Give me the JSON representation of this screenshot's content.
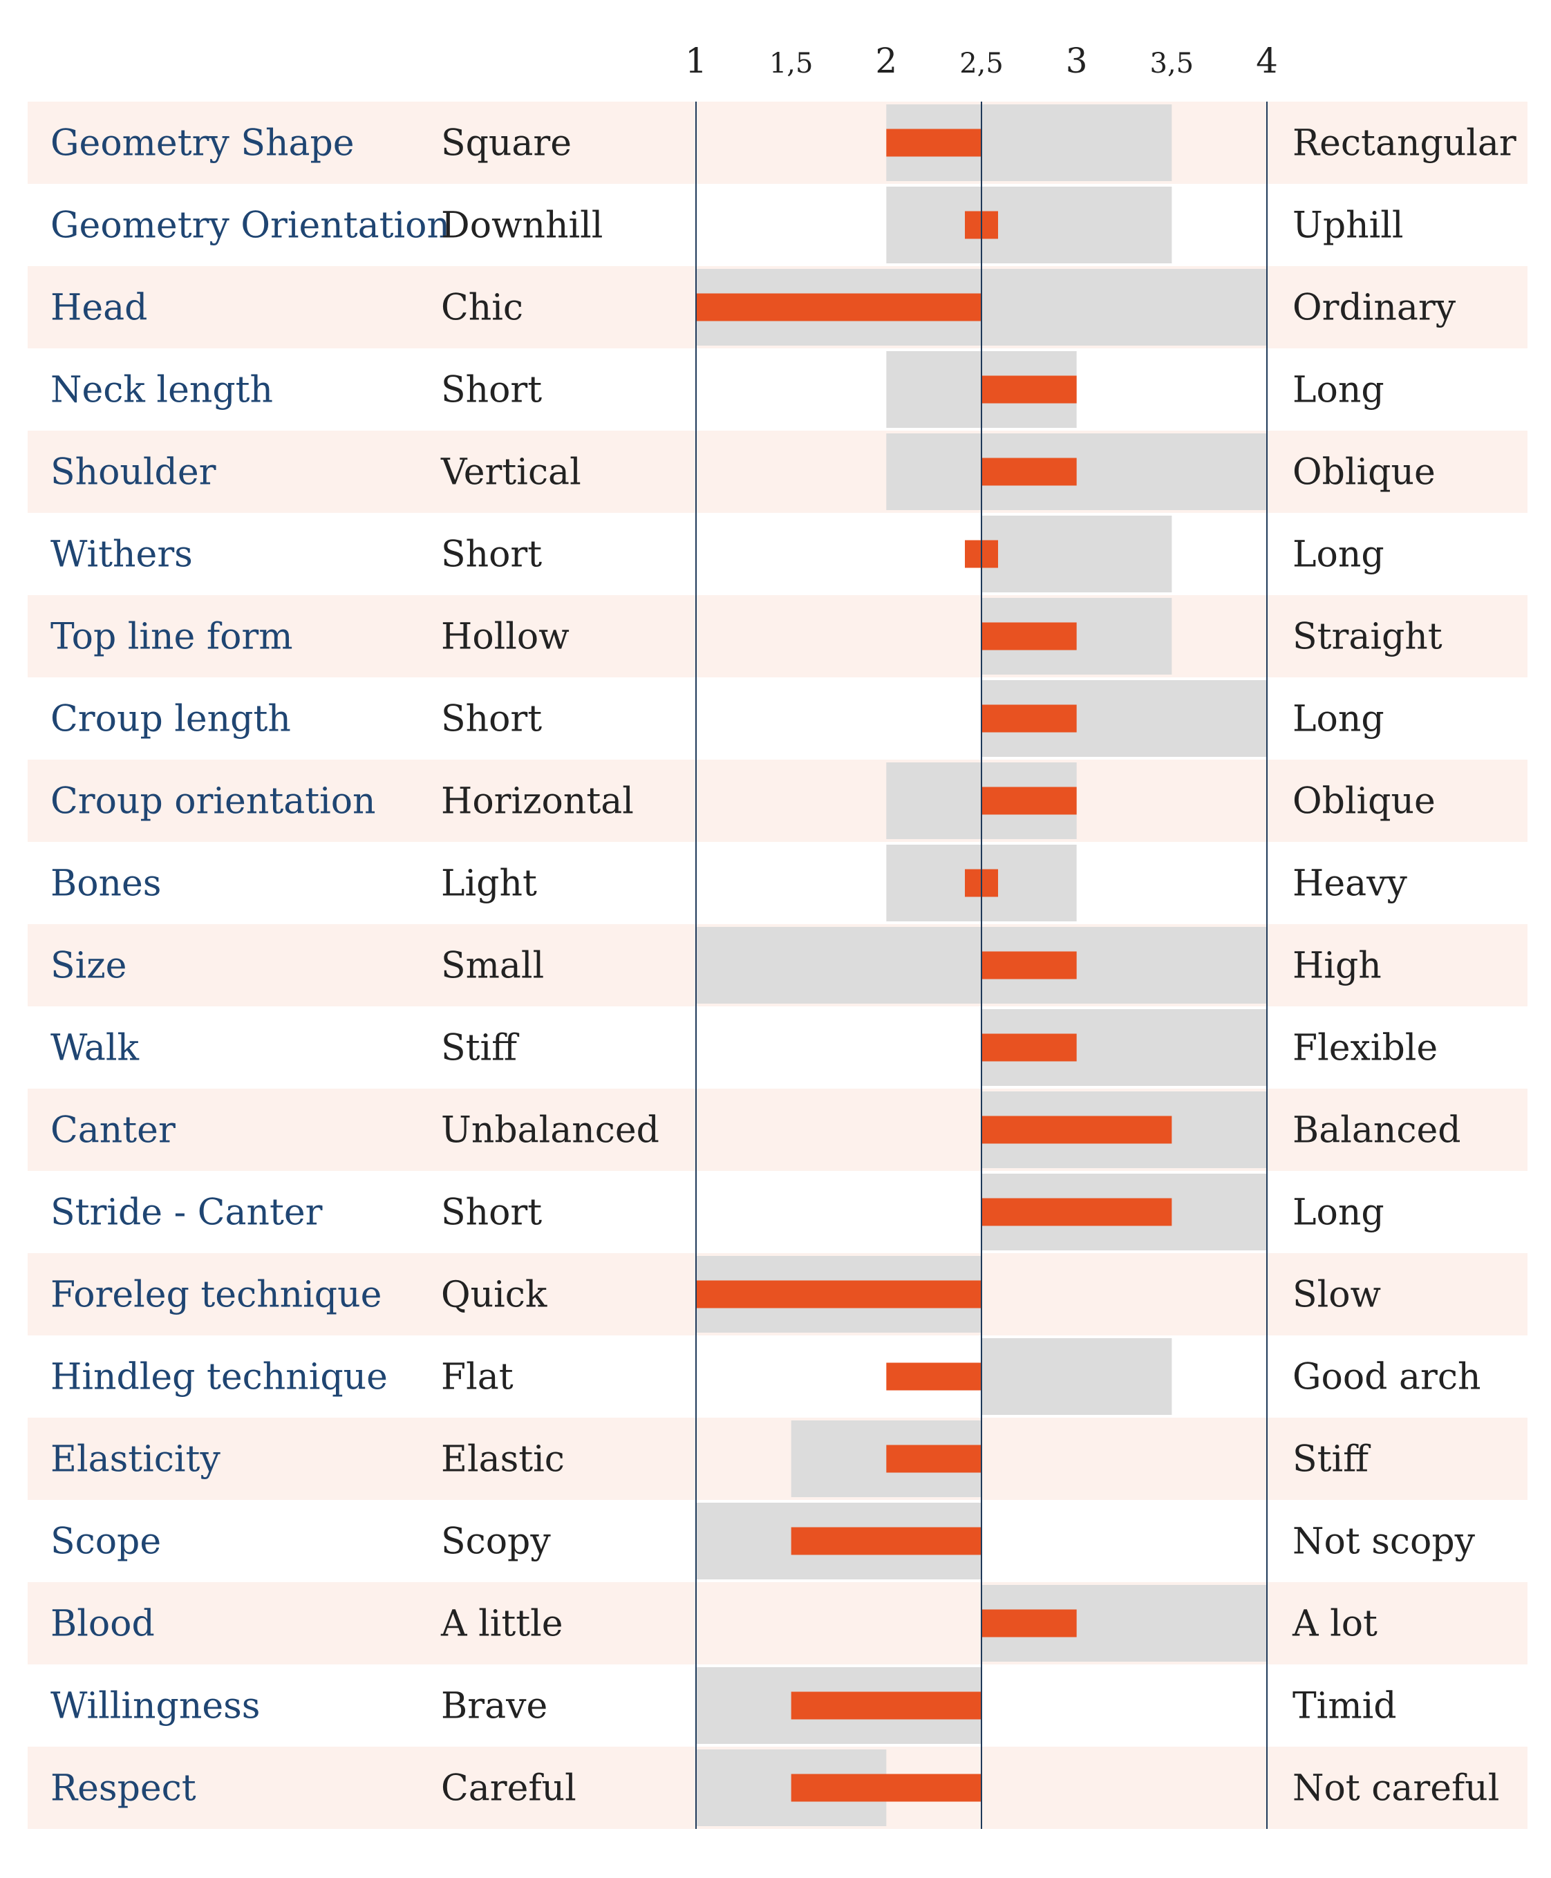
{
  "chart_data": {
    "type": "bar",
    "x_ticks": [
      "1",
      "1,5",
      "2",
      "2,5",
      "3",
      "3,5",
      "4"
    ],
    "xlim": [
      1,
      4
    ],
    "baseline": 2.5,
    "colors": {
      "band": "#dcdcdc",
      "value": "#e85221",
      "row_alt": "#fdf1ec",
      "trait_text": "#1f4572",
      "axis": "#1f3a5a"
    },
    "rows": [
      {
        "trait": "Geometry Shape",
        "left": "Square",
        "right": "Rectangular",
        "range": [
          2,
          3.5
        ],
        "value": 2
      },
      {
        "trait": "Geometry Orientation",
        "left": "Downhill",
        "right": "Uphill",
        "range": [
          2,
          3.5
        ],
        "value": 2.5
      },
      {
        "trait": "Head",
        "left": "Chic",
        "right": "Ordinary",
        "range": [
          1,
          4
        ],
        "value": 1
      },
      {
        "trait": "Neck length",
        "left": "Short",
        "right": "Long",
        "range": [
          2,
          3
        ],
        "value": 3
      },
      {
        "trait": "Shoulder",
        "left": "Vertical",
        "right": "Oblique",
        "range": [
          2,
          4
        ],
        "value": 3
      },
      {
        "trait": "Withers",
        "left": "Short",
        "right": "Long",
        "range": [
          2.5,
          3.5
        ],
        "value": 2.5
      },
      {
        "trait": "Top line form",
        "left": "Hollow",
        "right": "Straight",
        "range": [
          2.5,
          3.5
        ],
        "value": 3
      },
      {
        "trait": "Croup length",
        "left": "Short",
        "right": "Long",
        "range": [
          2.5,
          4
        ],
        "value": 3
      },
      {
        "trait": "Croup orientation",
        "left": "Horizontal",
        "right": "Oblique",
        "range": [
          2,
          3
        ],
        "value": 3
      },
      {
        "trait": "Bones",
        "left": "Light",
        "right": "Heavy",
        "range": [
          2,
          3
        ],
        "value": 2.5
      },
      {
        "trait": "Size",
        "left": "Small",
        "right": "High",
        "range": [
          1,
          4
        ],
        "value": 3
      },
      {
        "trait": "Walk",
        "left": "Stiff",
        "right": "Flexible",
        "range": [
          2.5,
          4
        ],
        "value": 3
      },
      {
        "trait": "Canter",
        "left": "Unbalanced",
        "right": "Balanced",
        "range": [
          2.5,
          4
        ],
        "value": 3.5
      },
      {
        "trait": "Stride - Canter",
        "left": "Short",
        "right": "Long",
        "range": [
          2.5,
          4
        ],
        "value": 3.5
      },
      {
        "trait": "Foreleg technique",
        "left": "Quick",
        "right": "Slow",
        "range": [
          1,
          2.5
        ],
        "value": 1
      },
      {
        "trait": "Hindleg technique",
        "left": "Flat",
        "right": "Good arch",
        "range": [
          2.5,
          3.5
        ],
        "value": 2
      },
      {
        "trait": "Elasticity",
        "left": "Elastic",
        "right": "Stiff",
        "range": [
          1.5,
          2.5
        ],
        "value": 2
      },
      {
        "trait": "Scope",
        "left": "Scopy",
        "right": "Not scopy",
        "range": [
          1,
          2.5
        ],
        "value": 1.5
      },
      {
        "trait": "Blood",
        "left": "A little",
        "right": "A lot",
        "range": [
          2.5,
          4
        ],
        "value": 3
      },
      {
        "trait": "Willingness",
        "left": "Brave",
        "right": "Timid",
        "range": [
          1,
          2.5
        ],
        "value": 1.5
      },
      {
        "trait": "Respect",
        "left": "Careful",
        "right": "Not careful",
        "range": [
          1,
          2
        ],
        "value": 1.5
      }
    ]
  }
}
